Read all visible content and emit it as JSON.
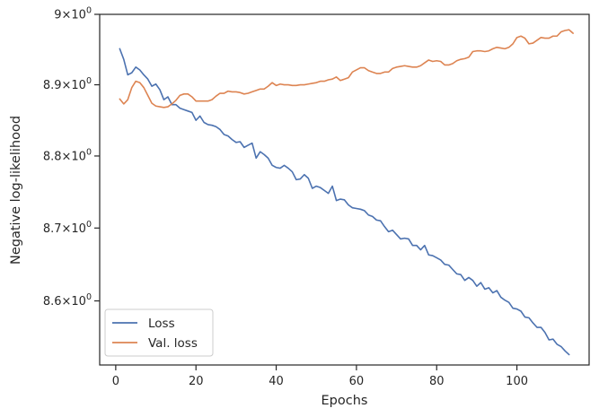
{
  "chart_data": {
    "type": "line",
    "xlabel": "Epochs",
    "ylabel": "Negative log-likelihood",
    "yscale": "log",
    "xlim": [
      -4,
      118
    ],
    "ylim": [
      8.513,
      9.0
    ],
    "grid": false,
    "legend_placement": "lower left",
    "x_ticks": [
      {
        "value": 0,
        "label": "0"
      },
      {
        "value": 20,
        "label": "20"
      },
      {
        "value": 40,
        "label": "40"
      },
      {
        "value": 60,
        "label": "60"
      },
      {
        "value": 80,
        "label": "80"
      },
      {
        "value": 100,
        "label": "100"
      }
    ],
    "y_ticks": [
      {
        "value": 9.0,
        "base": "9",
        "times": "×",
        "power": "10",
        "exp": "0"
      },
      {
        "value": 8.9,
        "base": "8.9",
        "times": "×",
        "power": "10",
        "exp": "0"
      },
      {
        "value": 8.8,
        "base": "8.8",
        "times": "×",
        "power": "10",
        "exp": "0"
      },
      {
        "value": 8.7,
        "base": "8.7",
        "times": "×",
        "power": "10",
        "exp": "0"
      },
      {
        "value": 8.6,
        "base": "8.6",
        "times": "×",
        "power": "10",
        "exp": "0"
      }
    ],
    "series": [
      {
        "name": "Loss",
        "color": "#4c72b0",
        "points": [
          [
            1,
            8.951
          ],
          [
            2,
            8.936
          ],
          [
            3,
            8.914
          ],
          [
            4,
            8.917
          ],
          [
            5,
            8.925
          ],
          [
            6,
            8.921
          ],
          [
            7,
            8.914
          ],
          [
            8,
            8.908
          ],
          [
            9,
            8.898
          ],
          [
            10,
            8.901
          ],
          [
            11,
            8.893
          ],
          [
            12,
            8.879
          ],
          [
            13,
            8.883
          ],
          [
            14,
            8.872
          ],
          [
            15,
            8.872
          ],
          [
            16,
            8.867
          ],
          [
            17,
            8.865
          ],
          [
            18,
            8.863
          ],
          [
            19,
            8.861
          ],
          [
            20,
            8.85
          ],
          [
            21,
            8.856
          ],
          [
            22,
            8.847
          ],
          [
            23,
            8.844
          ],
          [
            24,
            8.843
          ],
          [
            25,
            8.841
          ],
          [
            26,
            8.837
          ],
          [
            27,
            8.83
          ],
          [
            28,
            8.828
          ],
          [
            29,
            8.823
          ],
          [
            30,
            8.819
          ],
          [
            31,
            8.82
          ],
          [
            32,
            8.812
          ],
          [
            33,
            8.815
          ],
          [
            34,
            8.818
          ],
          [
            35,
            8.797
          ],
          [
            36,
            8.806
          ],
          [
            37,
            8.802
          ],
          [
            38,
            8.797
          ],
          [
            39,
            8.787
          ],
          [
            40,
            8.784
          ],
          [
            41,
            8.783
          ],
          [
            42,
            8.787
          ],
          [
            43,
            8.783
          ],
          [
            44,
            8.778
          ],
          [
            45,
            8.767
          ],
          [
            46,
            8.768
          ],
          [
            47,
            8.774
          ],
          [
            48,
            8.769
          ],
          [
            49,
            8.755
          ],
          [
            50,
            8.758
          ],
          [
            51,
            8.756
          ],
          [
            52,
            8.752
          ],
          [
            53,
            8.748
          ],
          [
            54,
            8.758
          ],
          [
            55,
            8.738
          ],
          [
            56,
            8.74
          ],
          [
            57,
            8.739
          ],
          [
            58,
            8.732
          ],
          [
            59,
            8.728
          ],
          [
            60,
            8.727
          ],
          [
            61,
            8.726
          ],
          [
            62,
            8.724
          ],
          [
            63,
            8.718
          ],
          [
            64,
            8.716
          ],
          [
            65,
            8.711
          ],
          [
            66,
            8.71
          ],
          [
            67,
            8.702
          ],
          [
            68,
            8.695
          ],
          [
            69,
            8.697
          ],
          [
            70,
            8.691
          ],
          [
            71,
            8.685
          ],
          [
            72,
            8.686
          ],
          [
            73,
            8.685
          ],
          [
            74,
            8.676
          ],
          [
            75,
            8.676
          ],
          [
            76,
            8.67
          ],
          [
            77,
            8.676
          ],
          [
            78,
            8.663
          ],
          [
            79,
            8.662
          ],
          [
            80,
            8.659
          ],
          [
            81,
            8.656
          ],
          [
            82,
            8.65
          ],
          [
            83,
            8.649
          ],
          [
            84,
            8.643
          ],
          [
            85,
            8.637
          ],
          [
            86,
            8.636
          ],
          [
            87,
            8.628
          ],
          [
            88,
            8.632
          ],
          [
            89,
            8.628
          ],
          [
            90,
            8.62
          ],
          [
            91,
            8.625
          ],
          [
            92,
            8.616
          ],
          [
            93,
            8.618
          ],
          [
            94,
            8.611
          ],
          [
            95,
            8.614
          ],
          [
            96,
            8.605
          ],
          [
            97,
            8.601
          ],
          [
            98,
            8.598
          ],
          [
            99,
            8.59
          ],
          [
            100,
            8.589
          ],
          [
            101,
            8.586
          ],
          [
            102,
            8.578
          ],
          [
            103,
            8.577
          ],
          [
            104,
            8.57
          ],
          [
            105,
            8.564
          ],
          [
            106,
            8.564
          ],
          [
            107,
            8.557
          ],
          [
            108,
            8.547
          ],
          [
            109,
            8.548
          ],
          [
            110,
            8.541
          ],
          [
            111,
            8.538
          ],
          [
            112,
            8.532
          ],
          [
            113,
            8.527
          ]
        ]
      },
      {
        "name": "Val. loss",
        "color": "#dd8452",
        "points": [
          [
            1,
            8.88
          ],
          [
            2,
            8.873
          ],
          [
            3,
            8.879
          ],
          [
            4,
            8.896
          ],
          [
            5,
            8.905
          ],
          [
            6,
            8.903
          ],
          [
            7,
            8.896
          ],
          [
            8,
            8.885
          ],
          [
            9,
            8.874
          ],
          [
            10,
            8.87
          ],
          [
            11,
            8.869
          ],
          [
            12,
            8.868
          ],
          [
            13,
            8.869
          ],
          [
            14,
            8.873
          ],
          [
            15,
            8.878
          ],
          [
            16,
            8.885
          ],
          [
            17,
            8.887
          ],
          [
            18,
            8.887
          ],
          [
            19,
            8.883
          ],
          [
            20,
            8.877
          ],
          [
            21,
            8.877
          ],
          [
            22,
            8.877
          ],
          [
            23,
            8.877
          ],
          [
            24,
            8.879
          ],
          [
            25,
            8.884
          ],
          [
            26,
            8.888
          ],
          [
            27,
            8.888
          ],
          [
            28,
            8.891
          ],
          [
            29,
            8.89
          ],
          [
            30,
            8.89
          ],
          [
            31,
            8.889
          ],
          [
            32,
            8.887
          ],
          [
            33,
            8.888
          ],
          [
            34,
            8.89
          ],
          [
            35,
            8.892
          ],
          [
            36,
            8.894
          ],
          [
            37,
            8.894
          ],
          [
            38,
            8.898
          ],
          [
            39,
            8.903
          ],
          [
            40,
            8.899
          ],
          [
            41,
            8.901
          ],
          [
            42,
            8.9
          ],
          [
            43,
            8.9
          ],
          [
            44,
            8.899
          ],
          [
            45,
            8.899
          ],
          [
            46,
            8.9
          ],
          [
            47,
            8.9
          ],
          [
            48,
            8.901
          ],
          [
            49,
            8.902
          ],
          [
            50,
            8.903
          ],
          [
            51,
            8.905
          ],
          [
            52,
            8.905
          ],
          [
            53,
            8.907
          ],
          [
            54,
            8.908
          ],
          [
            55,
            8.911
          ],
          [
            56,
            8.906
          ],
          [
            57,
            8.908
          ],
          [
            58,
            8.91
          ],
          [
            59,
            8.918
          ],
          [
            60,
            8.921
          ],
          [
            61,
            8.924
          ],
          [
            62,
            8.924
          ],
          [
            63,
            8.92
          ],
          [
            64,
            8.918
          ],
          [
            65,
            8.916
          ],
          [
            66,
            8.916
          ],
          [
            67,
            8.918
          ],
          [
            68,
            8.918
          ],
          [
            69,
            8.923
          ],
          [
            70,
            8.925
          ],
          [
            71,
            8.926
          ],
          [
            72,
            8.927
          ],
          [
            73,
            8.926
          ],
          [
            74,
            8.925
          ],
          [
            75,
            8.925
          ],
          [
            76,
            8.927
          ],
          [
            77,
            8.931
          ],
          [
            78,
            8.935
          ],
          [
            79,
            8.933
          ],
          [
            80,
            8.934
          ],
          [
            81,
            8.933
          ],
          [
            82,
            8.928
          ],
          [
            83,
            8.928
          ],
          [
            84,
            8.93
          ],
          [
            85,
            8.934
          ],
          [
            86,
            8.936
          ],
          [
            87,
            8.937
          ],
          [
            88,
            8.939
          ],
          [
            89,
            8.947
          ],
          [
            90,
            8.948
          ],
          [
            91,
            8.948
          ],
          [
            92,
            8.947
          ],
          [
            93,
            8.948
          ],
          [
            94,
            8.951
          ],
          [
            95,
            8.953
          ],
          [
            96,
            8.952
          ],
          [
            97,
            8.951
          ],
          [
            98,
            8.953
          ],
          [
            99,
            8.958
          ],
          [
            100,
            8.967
          ],
          [
            101,
            8.969
          ],
          [
            102,
            8.966
          ],
          [
            103,
            8.958
          ],
          [
            104,
            8.959
          ],
          [
            105,
            8.963
          ],
          [
            106,
            8.967
          ],
          [
            107,
            8.966
          ],
          [
            108,
            8.966
          ],
          [
            109,
            8.969
          ],
          [
            110,
            8.969
          ],
          [
            111,
            8.975
          ],
          [
            112,
            8.977
          ],
          [
            113,
            8.978
          ],
          [
            114,
            8.973
          ]
        ]
      }
    ]
  }
}
